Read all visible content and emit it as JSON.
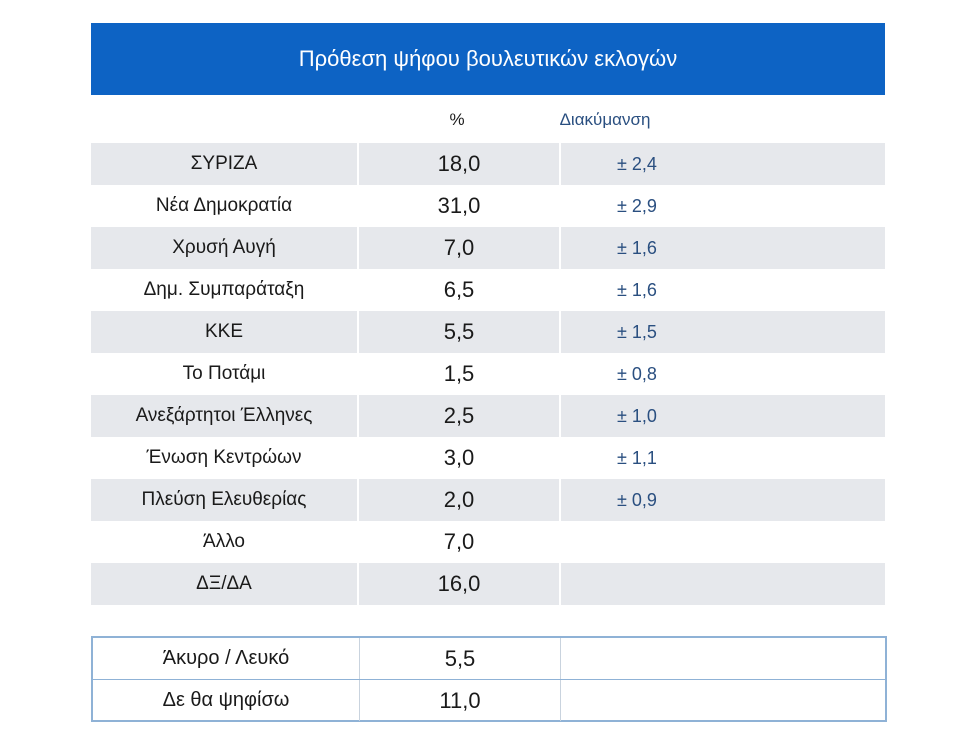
{
  "chart_data": {
    "type": "table",
    "title": "Πρόθεση ψήφου βουλευτικών εκλογών",
    "columns": [
      "",
      "%",
      "Διακύμανση"
    ],
    "rows": [
      {
        "party": "ΣΥΡΙΖΑ",
        "value": "18,0",
        "moe": "± 2,4"
      },
      {
        "party": "Νέα Δημοκρατία",
        "value": "31,0",
        "moe": "± 2,9"
      },
      {
        "party": "Χρυσή Αυγή",
        "value": "7,0",
        "moe": "± 1,6"
      },
      {
        "party": "Δημ. Συμπαράταξη",
        "value": "6,5",
        "moe": "± 1,6"
      },
      {
        "party": "ΚΚΕ",
        "value": "5,5",
        "moe": "± 1,5"
      },
      {
        "party": "Το Ποτάμι",
        "value": "1,5",
        "moe": "± 0,8"
      },
      {
        "party": "Ανεξάρτητοι Έλληνες",
        "value": "2,5",
        "moe": "± 1,0"
      },
      {
        "party": "Ένωση Κεντρώων",
        "value": "3,0",
        "moe": "± 1,1"
      },
      {
        "party": "Πλεύση Ελευθερίας",
        "value": "2,0",
        "moe": "± 0,9"
      },
      {
        "party": "Άλλο",
        "value": "7,0",
        "moe": ""
      },
      {
        "party": "ΔΞ/ΔΑ",
        "value": "16,0",
        "moe": ""
      }
    ],
    "extra_rows": [
      {
        "party": "Άκυρο / Λευκό",
        "value": "5,5"
      },
      {
        "party": "Δε θα ψηφίσω",
        "value": "11,0"
      }
    ]
  },
  "colors": {
    "header_bg": "#0d63c4",
    "row_shade": "#e6e8ec",
    "moe_text": "#2a4f80",
    "box_border": "#8fb2d6"
  }
}
